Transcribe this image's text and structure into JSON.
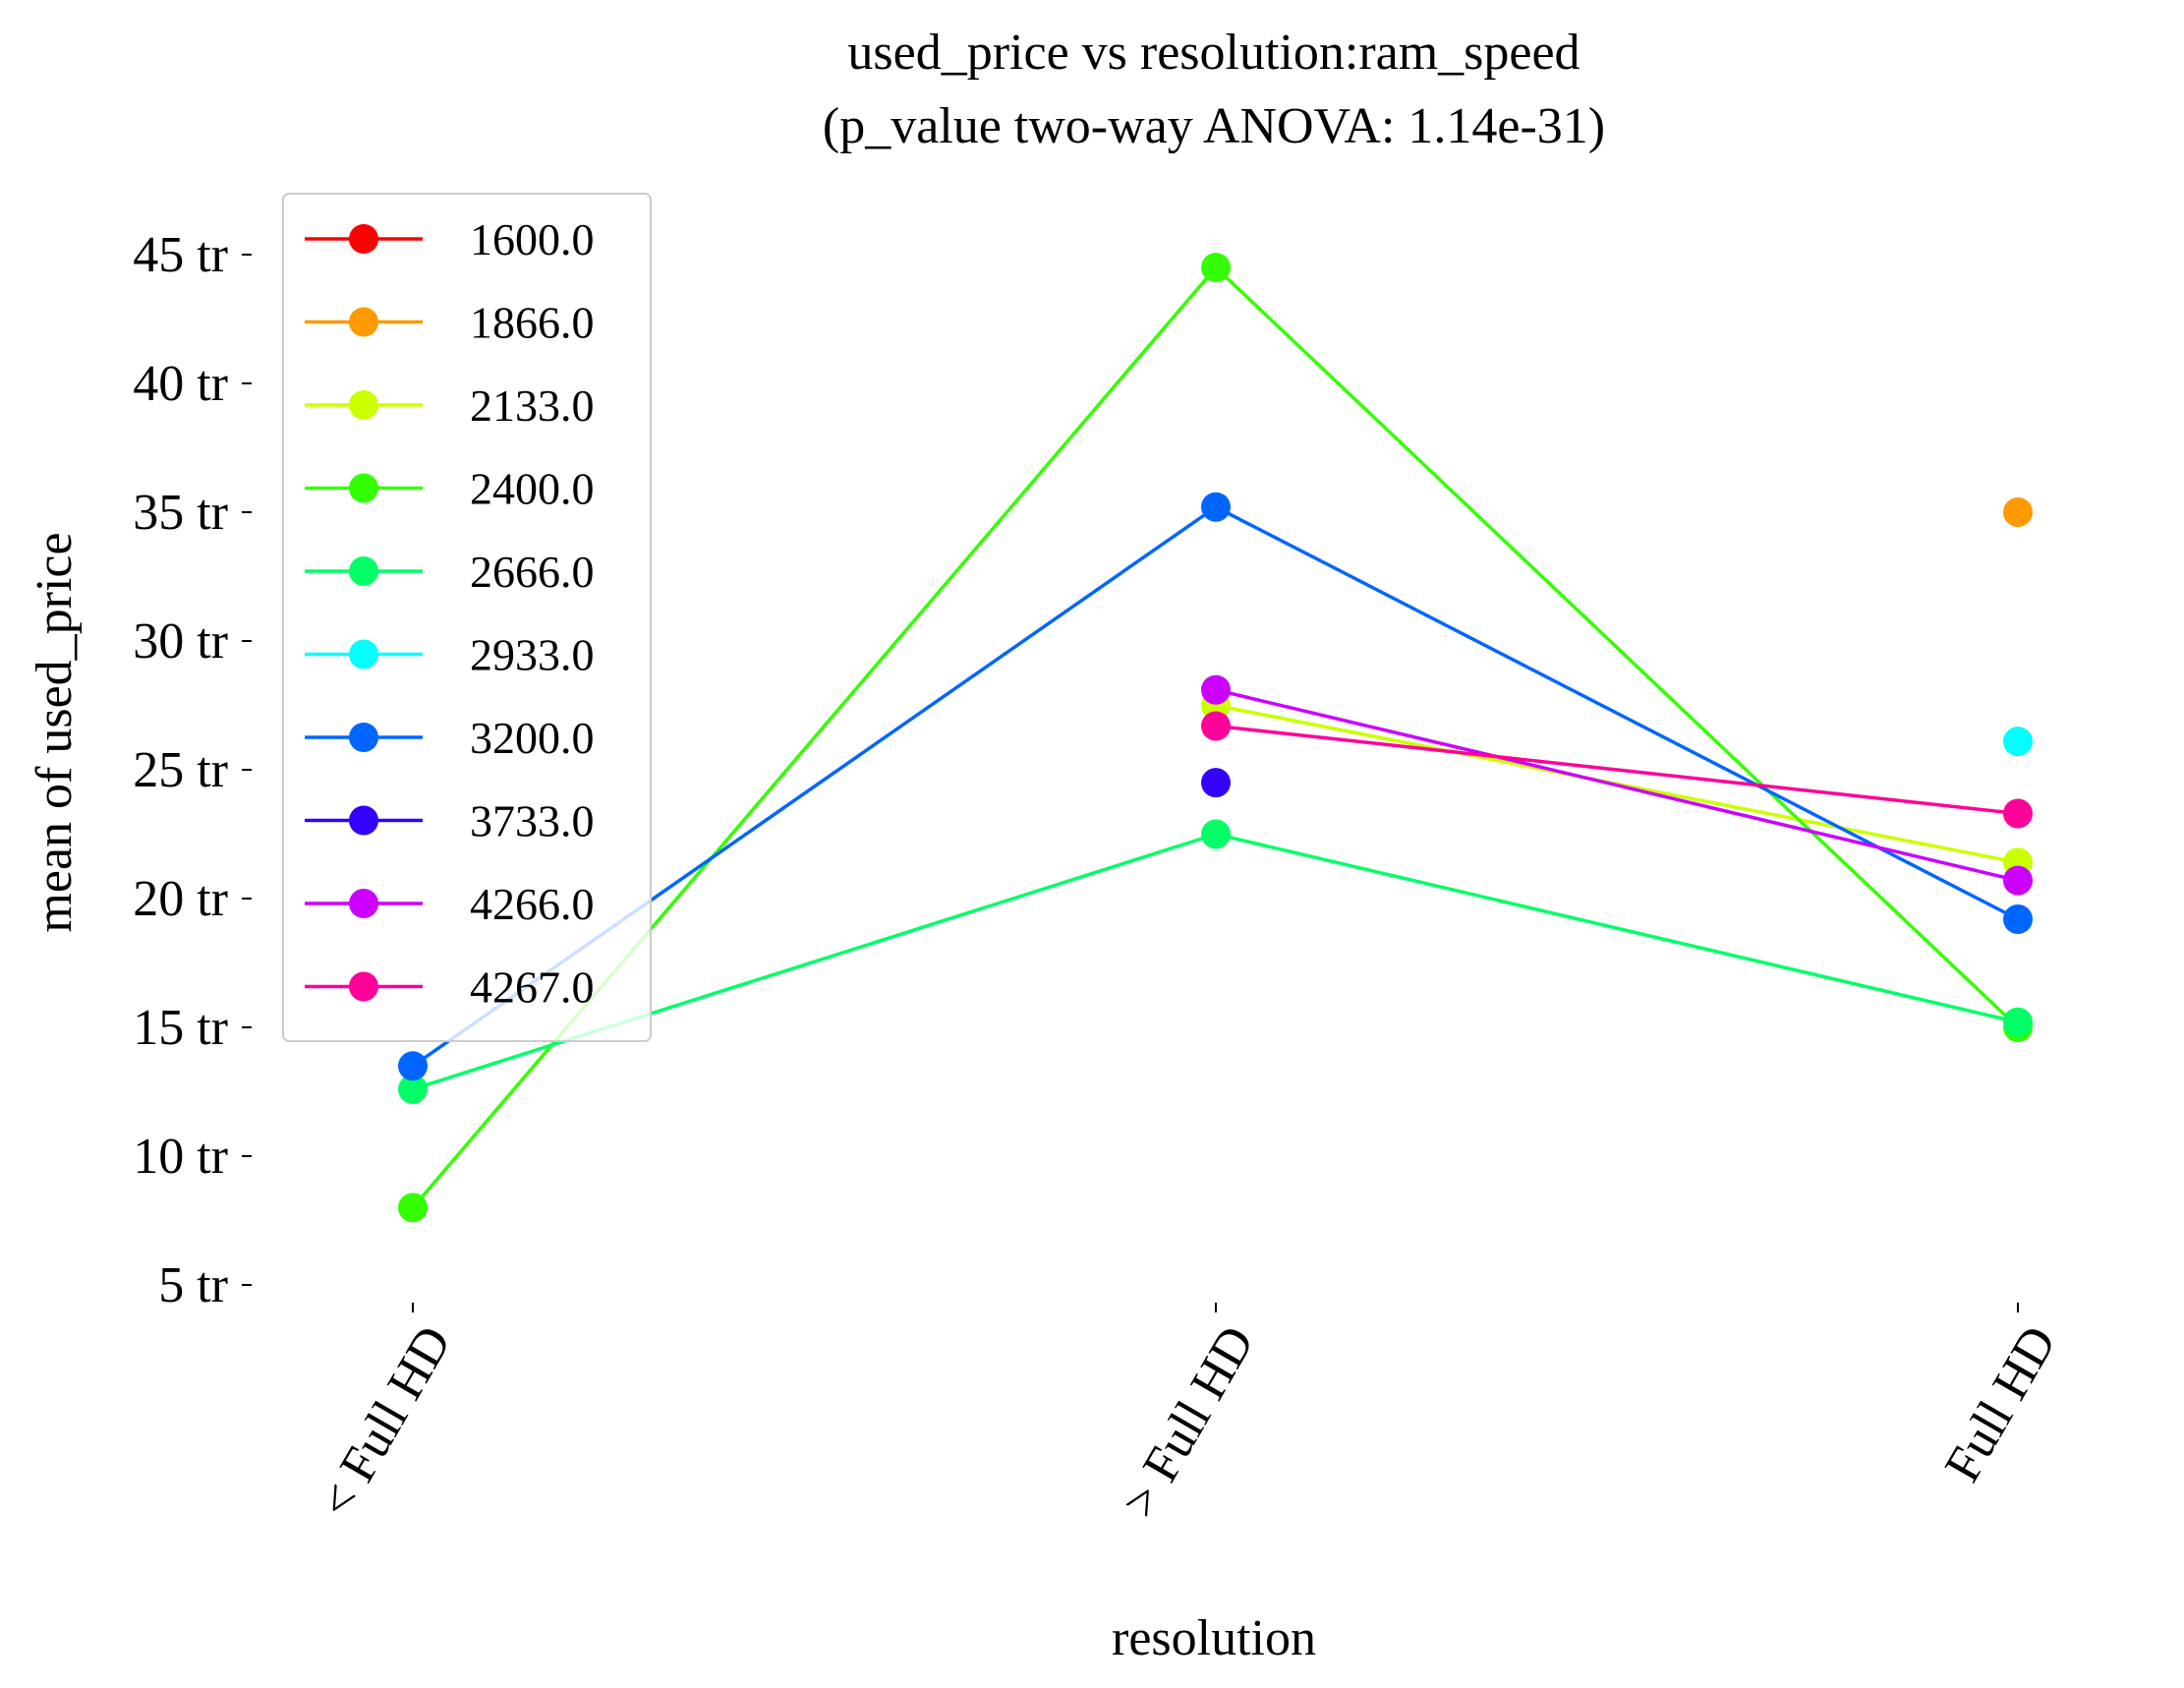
{
  "chart_data": {
    "type": "line",
    "title": "used_price vs resolution:ram_speed",
    "subtitle": "(p_value two-way ANOVA: 1.14e-31)",
    "xlabel": "resolution",
    "ylabel": "mean of used_price",
    "categories": [
      "< Full HD",
      "> Full HD",
      "Full HD"
    ],
    "yticks": [
      5,
      10,
      15,
      20,
      25,
      30,
      35,
      40,
      45
    ],
    "ytick_labels": [
      "5 tr",
      "10 tr",
      "15 tr",
      "20 tr",
      "25 tr",
      "30 tr",
      "35 tr",
      "40 tr",
      "45 tr"
    ],
    "ylim": [
      4.0,
      46.0
    ],
    "grid": false,
    "legend_position": "upper-left",
    "series": [
      {
        "name": "1600.0",
        "color": "#ff0000",
        "values": [
          null,
          null,
          null
        ]
      },
      {
        "name": "1866.0",
        "color": "#ff9900",
        "values": [
          null,
          null,
          35.0
        ]
      },
      {
        "name": "2133.0",
        "color": "#ccff00",
        "values": [
          null,
          27.5,
          21.4
        ]
      },
      {
        "name": "2400.0",
        "color": "#33ff00",
        "values": [
          8.0,
          44.5,
          15.0
        ]
      },
      {
        "name": "2666.0",
        "color": "#00ff66",
        "values": [
          12.6,
          22.5,
          15.2
        ]
      },
      {
        "name": "2933.0",
        "color": "#00ffff",
        "values": [
          null,
          null,
          26.1
        ]
      },
      {
        "name": "3200.0",
        "color": "#0066ff",
        "values": [
          13.5,
          35.2,
          19.2
        ]
      },
      {
        "name": "3733.0",
        "color": "#3300ff",
        "values": [
          null,
          24.5,
          null
        ]
      },
      {
        "name": "4266.0",
        "color": "#cc00ff",
        "values": [
          null,
          28.1,
          20.7
        ]
      },
      {
        "name": "4267.0",
        "color": "#ff0099",
        "values": [
          null,
          26.7,
          23.3
        ]
      }
    ]
  }
}
